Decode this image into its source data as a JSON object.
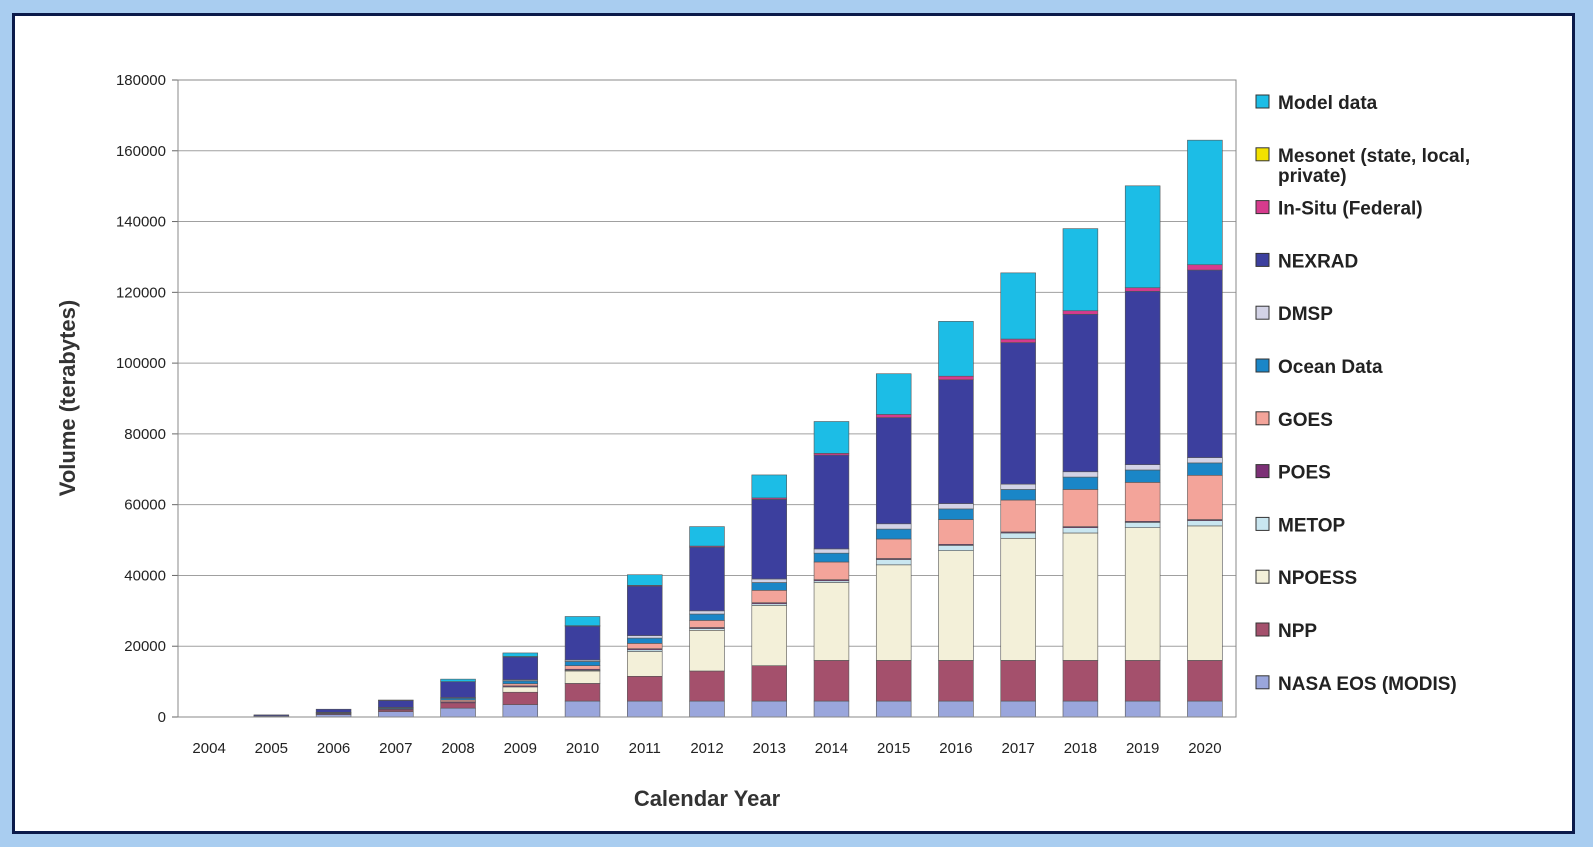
{
  "chart_data": {
    "type": "bar",
    "stacked": true,
    "xlabel": "Calendar Year",
    "ylabel": "Volume (terabytes)",
    "ylim": [
      0,
      180000
    ],
    "yticks": [
      0,
      20000,
      40000,
      60000,
      80000,
      100000,
      120000,
      140000,
      160000,
      180000
    ],
    "grid": true,
    "legend_position": "right",
    "categories": [
      "2004",
      "2005",
      "2006",
      "2007",
      "2008",
      "2009",
      "2010",
      "2011",
      "2012",
      "2013",
      "2014",
      "2015",
      "2016",
      "2017",
      "2018",
      "2019",
      "2020"
    ],
    "series": [
      {
        "name": "NASA EOS (MODIS)",
        "color": "#9aa6dc",
        "values": [
          0,
          300,
          700,
          1500,
          2500,
          3500,
          4500,
          4500,
          4500,
          4500,
          4500,
          4500,
          4500,
          4500,
          4500,
          4500,
          4500
        ]
      },
      {
        "name": "NPP",
        "color": "#a4506c",
        "values": [
          0,
          0,
          0,
          500,
          1500,
          3500,
          5000,
          7000,
          8500,
          10000,
          11500,
          11500,
          11500,
          11500,
          11500,
          11500,
          11500
        ]
      },
      {
        "name": "NPOESS",
        "color": "#f3f0d9",
        "values": [
          0,
          0,
          0,
          0,
          0,
          1500,
          3500,
          7000,
          11500,
          17000,
          22000,
          27000,
          31000,
          34500,
          36000,
          37500,
          38000
        ]
      },
      {
        "name": "METOP",
        "color": "#c9e6f0",
        "values": [
          0,
          0,
          0,
          0,
          0,
          0,
          200,
          500,
          500,
          500,
          500,
          1500,
          1500,
          1500,
          1500,
          1500,
          1500
        ]
      },
      {
        "name": "POES",
        "color": "#7c3076",
        "values": [
          0,
          0,
          300,
          300,
          300,
          300,
          300,
          300,
          300,
          300,
          300,
          300,
          300,
          300,
          300,
          300,
          300
        ]
      },
      {
        "name": "GOES",
        "color": "#f3a49a",
        "values": [
          0,
          0,
          0,
          0,
          500,
          600,
          1000,
          1500,
          2000,
          3500,
          5000,
          5500,
          7000,
          9000,
          10500,
          11000,
          12500
        ]
      },
      {
        "name": "Ocean Data",
        "color": "#1a86c7",
        "values": [
          0,
          0,
          200,
          300,
          500,
          800,
          1200,
          1500,
          1800,
          2200,
          2500,
          2800,
          3000,
          3000,
          3500,
          3500,
          3500
        ]
      },
      {
        "name": "DMSP",
        "color": "#d3d3e6",
        "values": [
          0,
          0,
          100,
          100,
          200,
          300,
          400,
          700,
          900,
          1000,
          1200,
          1500,
          1500,
          1500,
          1500,
          1500,
          1500
        ]
      },
      {
        "name": "NEXRAD",
        "color": "#3c3f9e",
        "values": [
          0,
          300,
          900,
          2000,
          4500,
          6500,
          9600,
          14000,
          18000,
          22500,
          26500,
          30000,
          35000,
          40000,
          44500,
          49000,
          53000
        ]
      },
      {
        "name": "In-Situ (Federal)",
        "color": "#d63b8d",
        "values": [
          0,
          0,
          0,
          0,
          0,
          100,
          100,
          200,
          300,
          400,
          500,
          900,
          1000,
          1000,
          1000,
          1000,
          1500
        ]
      },
      {
        "name": "Mesonet (state, local, private)",
        "color": "#f2e100",
        "values": [
          0,
          0,
          0,
          0,
          0,
          0,
          0,
          0,
          0,
          0,
          0,
          0,
          0,
          0,
          0,
          0,
          0
        ]
      },
      {
        "name": "Model data",
        "color": "#1cbde6",
        "values": [
          0,
          0,
          0,
          100,
          700,
          1000,
          2600,
          3000,
          5500,
          6500,
          9000,
          11500,
          15500,
          18700,
          23200,
          28800,
          35200
        ]
      }
    ]
  }
}
